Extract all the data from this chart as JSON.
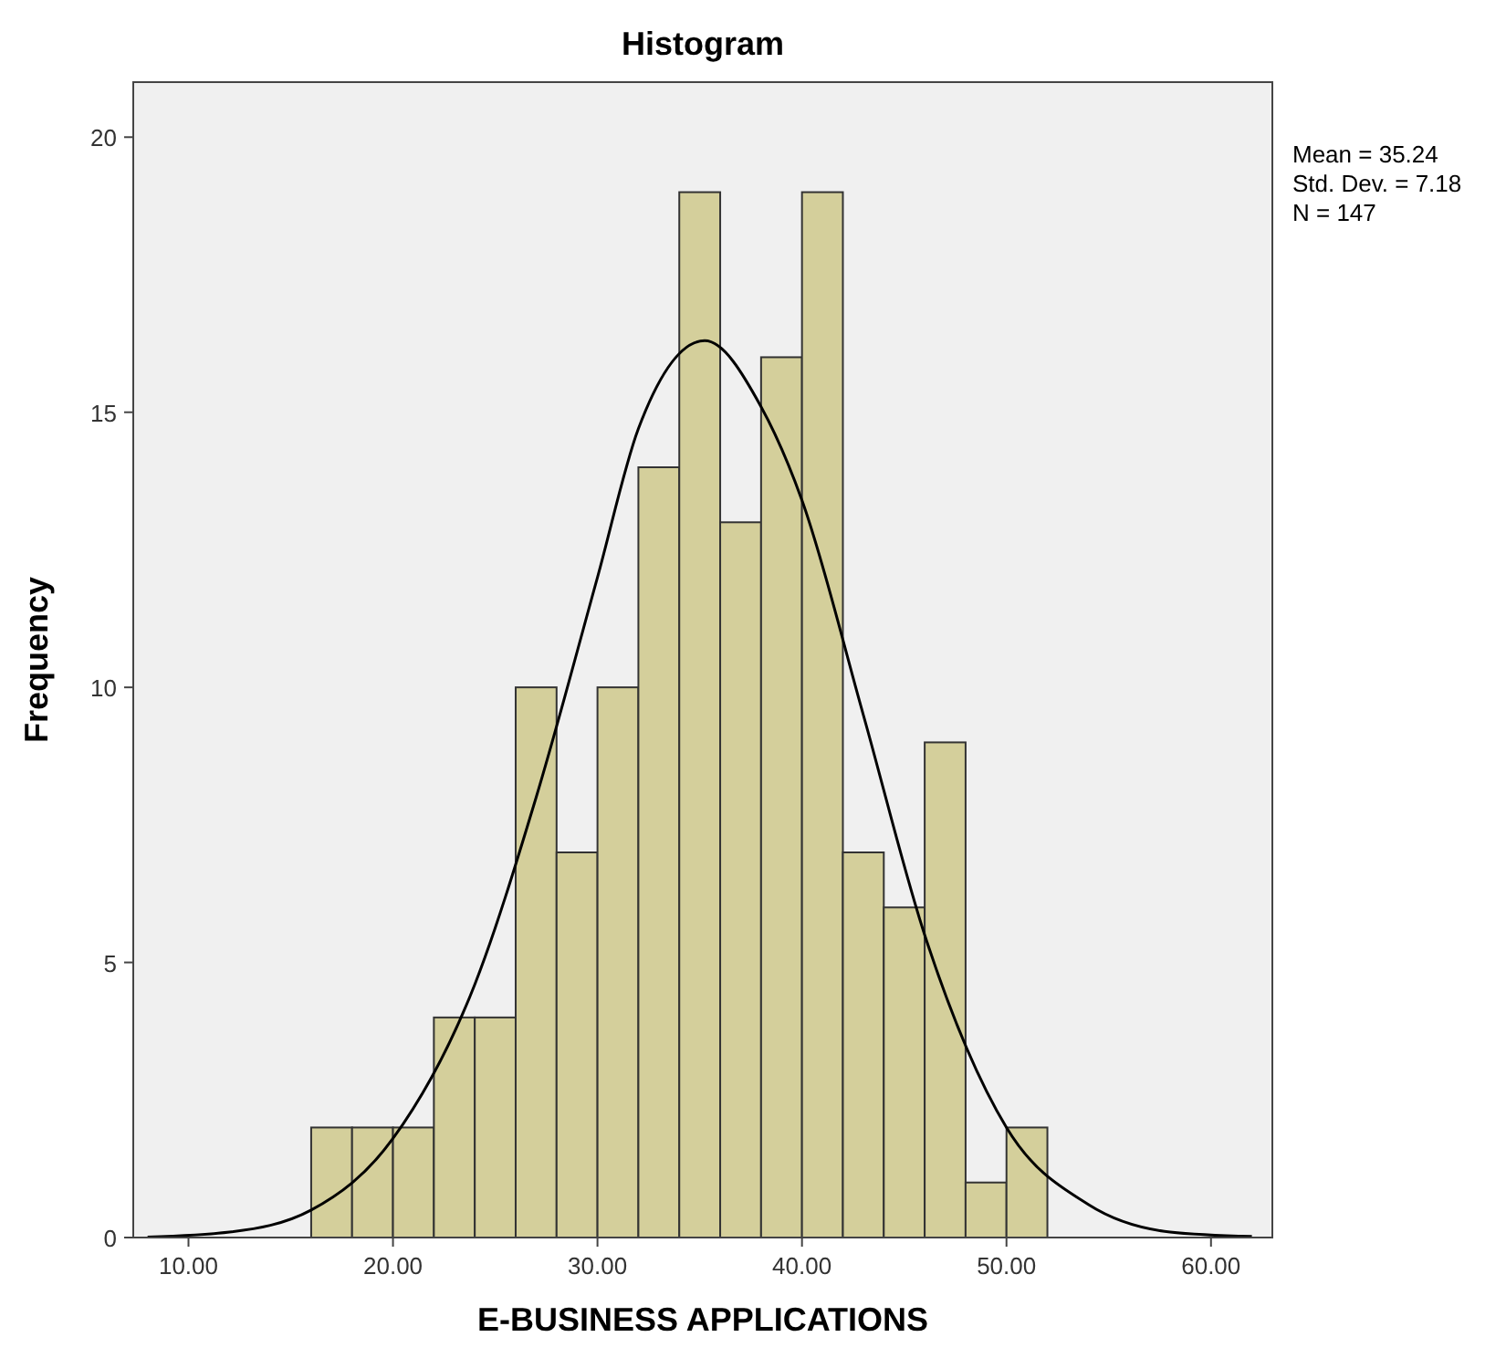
{
  "chart_data": {
    "type": "histogram",
    "title": "Histogram",
    "xlabel": "E-BUSINESS APPLICATIONS",
    "ylabel": "Frequency",
    "annotations": [
      "Mean = 35.24",
      "Std. Dev. = 7.18",
      "N = 147"
    ],
    "xlim": [
      7.3,
      63
    ],
    "ylim": [
      0,
      21
    ],
    "xticks": [
      {
        "value": 10,
        "label": "10.00"
      },
      {
        "value": 20,
        "label": "20.00"
      },
      {
        "value": 30,
        "label": "30.00"
      },
      {
        "value": 40,
        "label": "40.00"
      },
      {
        "value": 50,
        "label": "50.00"
      },
      {
        "value": 60,
        "label": "60.00"
      }
    ],
    "yticks": [
      0,
      5,
      10,
      15,
      20
    ],
    "grid": false,
    "series": [
      {
        "type": "histogram",
        "color": "#d4cf9b",
        "bins": [
          16,
          18,
          20,
          22,
          24,
          26,
          28,
          30,
          32,
          34,
          36,
          38,
          40,
          42,
          44,
          46,
          48,
          50,
          52
        ],
        "values": [
          2,
          2,
          2,
          4,
          4,
          10,
          7,
          10,
          14,
          19,
          13,
          16,
          19,
          7,
          6,
          9,
          1,
          2
        ]
      },
      {
        "type": "line",
        "color": "#000000",
        "x": [
          8,
          12,
          16,
          20,
          24,
          27,
          30,
          32,
          35.24,
          38,
          40,
          43,
          46,
          50,
          54,
          58,
          62
        ],
        "values": [
          0.01,
          0.1,
          0.5,
          1.8,
          4.6,
          8,
          12,
          14.7,
          16.3,
          15.1,
          13.4,
          9.5,
          5.5,
          2,
          0.6,
          0.1,
          0.02
        ]
      }
    ]
  }
}
